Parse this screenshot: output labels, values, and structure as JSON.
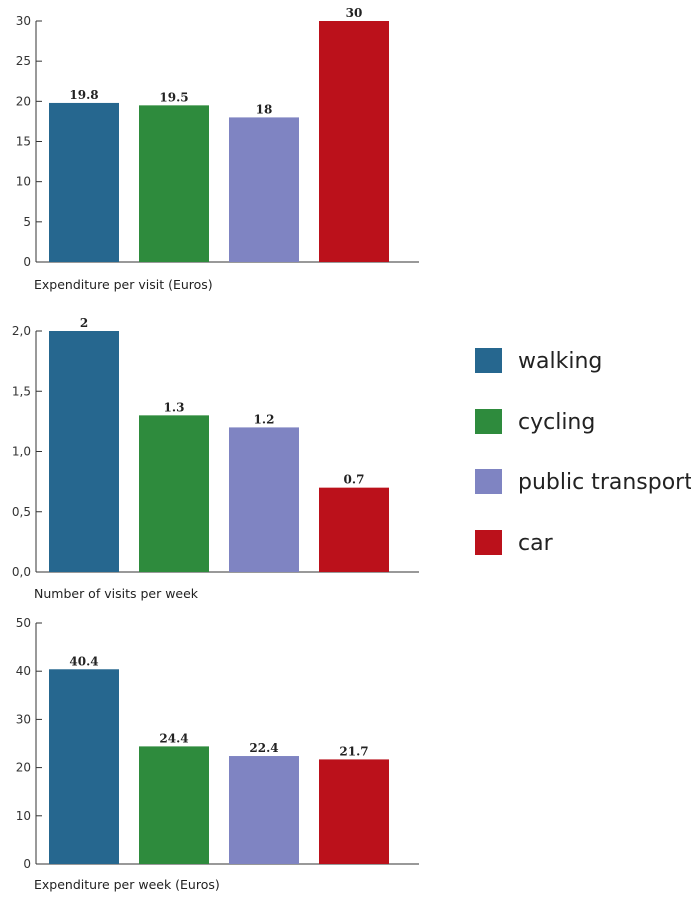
{
  "colors": {
    "walking": "#26678f",
    "cycling": "#2e8b3d",
    "public_transport": "#7f84c2",
    "car": "#bb111b",
    "axis": "#333333"
  },
  "legend": {
    "items": [
      {
        "label": "walking",
        "color": "#26678f"
      },
      {
        "label": "cycling",
        "color": "#2e8b3d"
      },
      {
        "label": "public transport",
        "color": "#7f84c2"
      },
      {
        "label": "car",
        "color": "#bb111b"
      }
    ]
  },
  "chart_data": [
    {
      "type": "bar",
      "categories": [
        "walking",
        "cycling",
        "public transport",
        "car"
      ],
      "values": [
        19.8,
        19.5,
        18,
        30
      ],
      "value_labels": [
        "19.8",
        "19.5",
        "18",
        "30"
      ],
      "xlabel": "Expenditure per visit (Euros)",
      "ylabel": "",
      "ylim": [
        0,
        30
      ],
      "yticks": [
        0,
        5,
        10,
        15,
        20,
        25,
        30
      ],
      "ytick_labels": [
        "0",
        "5",
        "10",
        "15",
        "20",
        "25",
        "30"
      ],
      "grid": false
    },
    {
      "type": "bar",
      "categories": [
        "walking",
        "cycling",
        "public transport",
        "car"
      ],
      "values": [
        2,
        1.3,
        1.2,
        0.7
      ],
      "value_labels": [
        "2",
        "1.3",
        "1.2",
        "0.7"
      ],
      "xlabel": "Number of visits per week",
      "ylabel": "",
      "ylim": [
        0,
        2
      ],
      "yticks": [
        0,
        0.5,
        1,
        1.5,
        2
      ],
      "ytick_labels": [
        "0,0",
        "0,5",
        "1,0",
        "1,5",
        "2,0"
      ],
      "grid": false
    },
    {
      "type": "bar",
      "categories": [
        "walking",
        "cycling",
        "public transport",
        "car"
      ],
      "values": [
        40.4,
        24.4,
        22.4,
        21.7
      ],
      "value_labels": [
        "40.4",
        "24.4",
        "22.4",
        "21.7"
      ],
      "xlabel": "Expenditure per week (Euros)",
      "ylabel": "",
      "ylim": [
        0,
        50
      ],
      "yticks": [
        0,
        10,
        20,
        30,
        40,
        50
      ],
      "ytick_labels": [
        "0",
        "10",
        "20",
        "30",
        "40",
        "50"
      ],
      "grid": false
    }
  ]
}
